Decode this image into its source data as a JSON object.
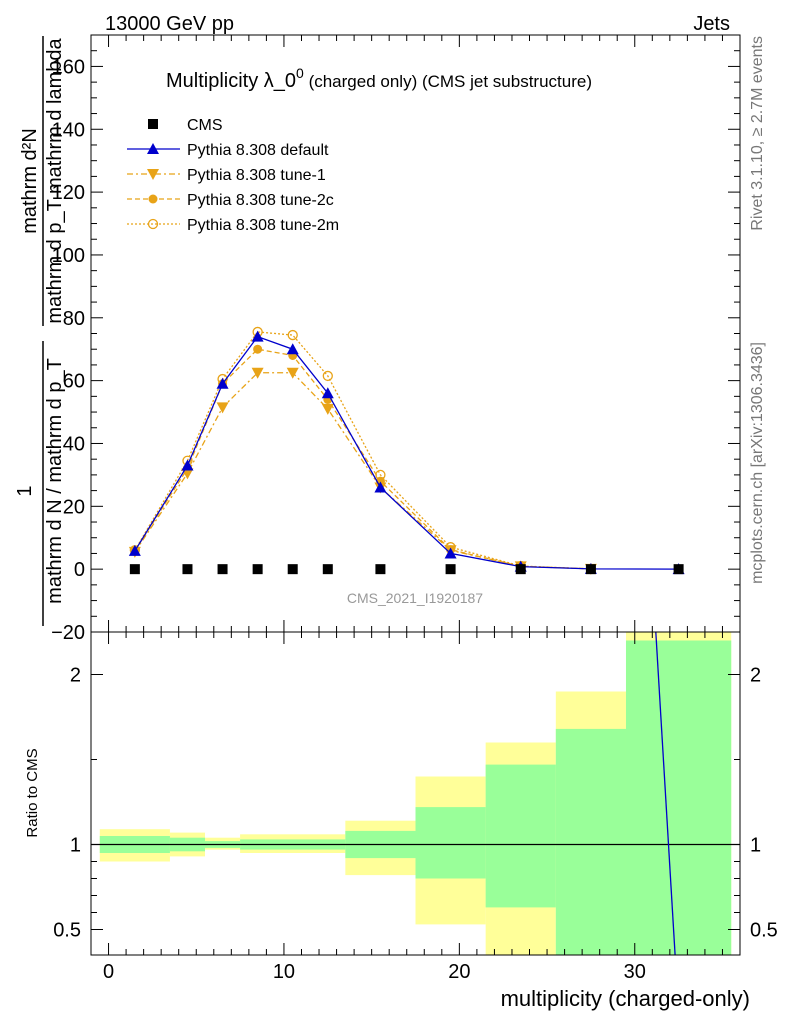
{
  "header": {
    "left": "13000 GeV pp",
    "right": "Jets"
  },
  "side_texts": {
    "rivet": "Rivet 3.1.10, ≥ 2.7M events",
    "mcplots": "mcplots.cern.ch [arXiv:1306.3436]"
  },
  "watermark": "CMS_2021_I1920187",
  "colors": {
    "cms": "#000000",
    "default": "#0000cc",
    "tune": "#e8a317",
    "band_inner": "#99ff99",
    "band_outer": "#ffff99"
  },
  "chart_data": [
    {
      "type": "line",
      "title_main": "Multiplicity λ_0",
      "title_sup": "0",
      "title_tail": " (charged only) (CMS jet substructure)",
      "ylabel_num": "mathrm d²N",
      "ylabel_den": "mathrm d p_T mathrm d lambda",
      "ylabel_lhs_num": "1",
      "ylabel_lhs_den": "mathrm d N / mathrm d p_T",
      "xlim": [
        -1,
        36
      ],
      "ylim": [
        -20,
        170
      ],
      "yticks": [
        -20,
        0,
        20,
        40,
        60,
        80,
        100,
        120,
        140,
        160
      ],
      "legend_position": "top-left",
      "series": [
        {
          "name": "CMS",
          "marker": "square",
          "x": [
            1.5,
            4.5,
            6.5,
            8.5,
            10.5,
            12.5,
            15.5,
            19.5,
            23.5,
            27.5,
            32.5
          ],
          "y": [
            0,
            0,
            0,
            0,
            0,
            0,
            0,
            0,
            0,
            0,
            0
          ]
        },
        {
          "name": "Pythia 8.308 default",
          "marker": "triangle-up",
          "x": [
            1.5,
            4.5,
            6.5,
            8.5,
            10.5,
            12.5,
            15.5,
            19.5,
            23.5,
            27.5,
            32.5
          ],
          "y": [
            5.8,
            33,
            59,
            74,
            70,
            56,
            26,
            5,
            0.8,
            0.1,
            0
          ]
        },
        {
          "name": "Pythia 8.308 tune-1",
          "marker": "triangle-down",
          "x": [
            1.5,
            4.5,
            6.5,
            8.5,
            10.5,
            12.5,
            15.5,
            19.5,
            23.5,
            27.5
          ],
          "y": [
            5.5,
            30.5,
            51.5,
            62.5,
            62.5,
            51,
            26,
            6,
            0.9,
            0.1
          ]
        },
        {
          "name": "Pythia 8.308 tune-2c",
          "marker": "circle",
          "x": [
            1.5,
            4.5,
            6.5,
            8.5,
            10.5,
            12.5,
            15.5,
            19.5,
            23.5,
            27.5
          ],
          "y": [
            5.8,
            32,
            59,
            70,
            68,
            54,
            28,
            6.2,
            0.9,
            0.1
          ]
        },
        {
          "name": "Pythia 8.308 tune-2m",
          "marker": "circle-open",
          "x": [
            1.5,
            4.5,
            6.5,
            8.5,
            10.5,
            12.5,
            15.5,
            19.5,
            23.5,
            27.5
          ],
          "y": [
            6,
            34.5,
            60.5,
            75.5,
            74.5,
            61.5,
            30,
            7,
            1,
            0.1
          ]
        }
      ]
    },
    {
      "type": "area",
      "ylabel": "Ratio to CMS",
      "xlabel": "multiplicity (charged-only)",
      "xlim": [
        -1,
        36
      ],
      "ylim": [
        0.35,
        2.25
      ],
      "yticks": [
        0.5,
        1,
        2
      ],
      "xticks": [
        0,
        10,
        20,
        30
      ],
      "bins": [
        {
          "lo": -0.5,
          "hi": 3.5,
          "inner": [
            0.95,
            1.05
          ],
          "outer": [
            0.9,
            1.09
          ]
        },
        {
          "lo": 3.5,
          "hi": 5.5,
          "inner": [
            0.96,
            1.04
          ],
          "outer": [
            0.93,
            1.07
          ]
        },
        {
          "lo": 5.5,
          "hi": 7.5,
          "inner": [
            0.98,
            1.02
          ],
          "outer": [
            0.97,
            1.04
          ]
        },
        {
          "lo": 7.5,
          "hi": 13.5,
          "inner": [
            0.97,
            1.03
          ],
          "outer": [
            0.95,
            1.06
          ]
        },
        {
          "lo": 13.5,
          "hi": 17.5,
          "inner": [
            0.92,
            1.08
          ],
          "outer": [
            0.82,
            1.14
          ]
        },
        {
          "lo": 17.5,
          "hi": 21.5,
          "inner": [
            0.8,
            1.22
          ],
          "outer": [
            0.53,
            1.4
          ]
        },
        {
          "lo": 21.5,
          "hi": 25.5,
          "inner": [
            0.63,
            1.47
          ],
          "outer": [
            0.35,
            1.6
          ]
        },
        {
          "lo": 25.5,
          "hi": 29.5,
          "inner": [
            0.35,
            1.68
          ],
          "outer": [
            0.35,
            1.9
          ]
        },
        {
          "lo": 29.5,
          "hi": 35.5,
          "inner": [
            0.35,
            2.2
          ],
          "outer": [
            0.35,
            2.25
          ]
        }
      ],
      "default_ratio_line": {
        "x": [
          31.2,
          32.3
        ],
        "y": [
          2.25,
          0.35
        ]
      }
    }
  ]
}
